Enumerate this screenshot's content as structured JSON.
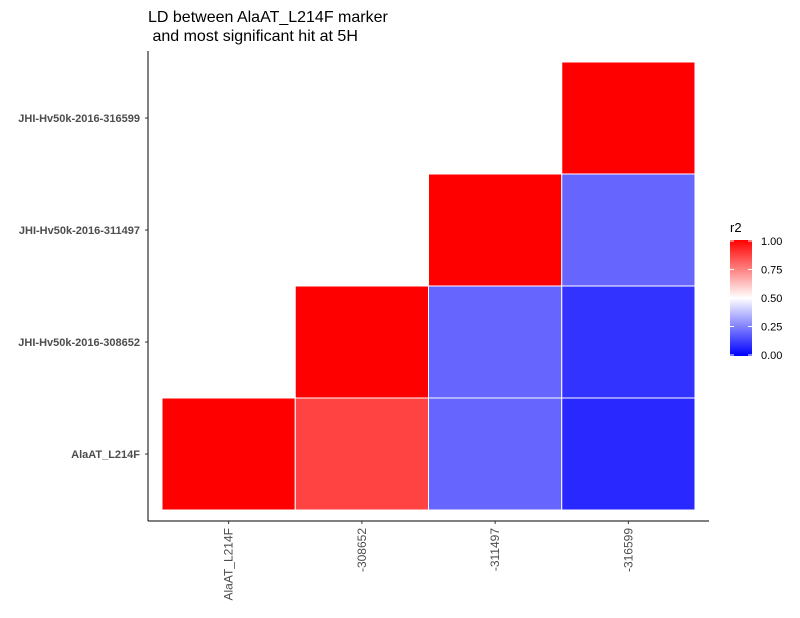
{
  "chart_data": {
    "type": "heatmap",
    "title_lines": [
      "LD between AlaAT_L214F marker",
      " and most significant hit at 5H"
    ],
    "x_categories": [
      "AlaAT_L214F",
      "-308652",
      "-311497",
      "-316599"
    ],
    "y_categories": [
      "AlaAT_L214F",
      "JHI-Hv50k-2016-308652",
      "JHI-Hv50k-2016-311497",
      "JHI-Hv50k-2016-316599"
    ],
    "cells": [
      {
        "x": "AlaAT_L214F",
        "y": "AlaAT_L214F",
        "value": 1.0
      },
      {
        "x": "-308652",
        "y": "AlaAT_L214F",
        "value": 0.87
      },
      {
        "x": "-311497",
        "y": "AlaAT_L214F",
        "value": 0.2
      },
      {
        "x": "-316599",
        "y": "AlaAT_L214F",
        "value": 0.08
      },
      {
        "x": "-308652",
        "y": "JHI-Hv50k-2016-308652",
        "value": 1.0
      },
      {
        "x": "-311497",
        "y": "JHI-Hv50k-2016-308652",
        "value": 0.2
      },
      {
        "x": "-316599",
        "y": "JHI-Hv50k-2016-308652",
        "value": 0.1
      },
      {
        "x": "-311497",
        "y": "JHI-Hv50k-2016-311497",
        "value": 1.0
      },
      {
        "x": "-316599",
        "y": "JHI-Hv50k-2016-311497",
        "value": 0.2
      },
      {
        "x": "-316599",
        "y": "JHI-Hv50k-2016-316599",
        "value": 1.0
      }
    ],
    "legend": {
      "title": "r2",
      "ticks": [
        "1.00",
        "0.75",
        "0.50",
        "0.25",
        "0.00"
      ],
      "range": [
        0,
        1
      ],
      "placement": "right"
    },
    "colors": {
      "low": "#0000ff",
      "mid": "#ffffff",
      "high": "#ff0000"
    },
    "grid": false
  }
}
